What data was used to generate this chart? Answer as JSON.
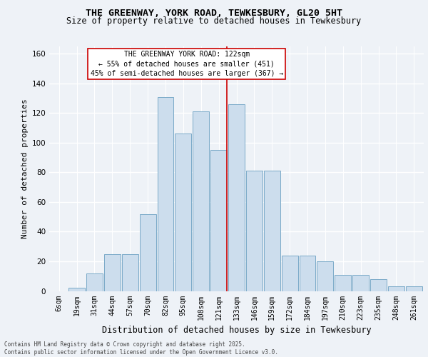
{
  "title_line1": "THE GREENWAY, YORK ROAD, TEWKESBURY, GL20 5HT",
  "title_line2": "Size of property relative to detached houses in Tewkesbury",
  "xlabel": "Distribution of detached houses by size in Tewkesbury",
  "ylabel": "Number of detached properties",
  "categories": [
    "6sqm",
    "19sqm",
    "31sqm",
    "44sqm",
    "57sqm",
    "70sqm",
    "82sqm",
    "95sqm",
    "108sqm",
    "121sqm",
    "133sqm",
    "146sqm",
    "159sqm",
    "172sqm",
    "184sqm",
    "197sqm",
    "210sqm",
    "223sqm",
    "235sqm",
    "248sqm",
    "261sqm"
  ],
  "values": [
    0,
    2,
    12,
    25,
    25,
    52,
    131,
    106,
    121,
    95,
    126,
    81,
    81,
    24,
    24,
    20,
    11,
    11,
    8,
    3,
    3
  ],
  "bar_color": "#ccdded",
  "bar_edge_color": "#7aaac8",
  "marker_bin_index": 9,
  "annotation_text": "THE GREENWAY YORK ROAD: 122sqm\n← 55% of detached houses are smaller (451)\n45% of semi-detached houses are larger (367) →",
  "ylim": [
    0,
    165
  ],
  "yticks": [
    0,
    20,
    40,
    60,
    80,
    100,
    120,
    140,
    160
  ],
  "footer": "Contains HM Land Registry data © Crown copyright and database right 2025.\nContains public sector information licensed under the Open Government Licence v3.0.",
  "bg_color": "#eef2f7",
  "grid_color": "#ffffff",
  "annotation_box_color": "#ffffff",
  "annotation_box_edge": "#cc0000",
  "marker_line_color": "#cc0000",
  "title1_fontsize": 9.5,
  "title2_fontsize": 8.5,
  "ylabel_fontsize": 8,
  "xlabel_fontsize": 8.5,
  "tick_fontsize": 7,
  "annot_fontsize": 7
}
